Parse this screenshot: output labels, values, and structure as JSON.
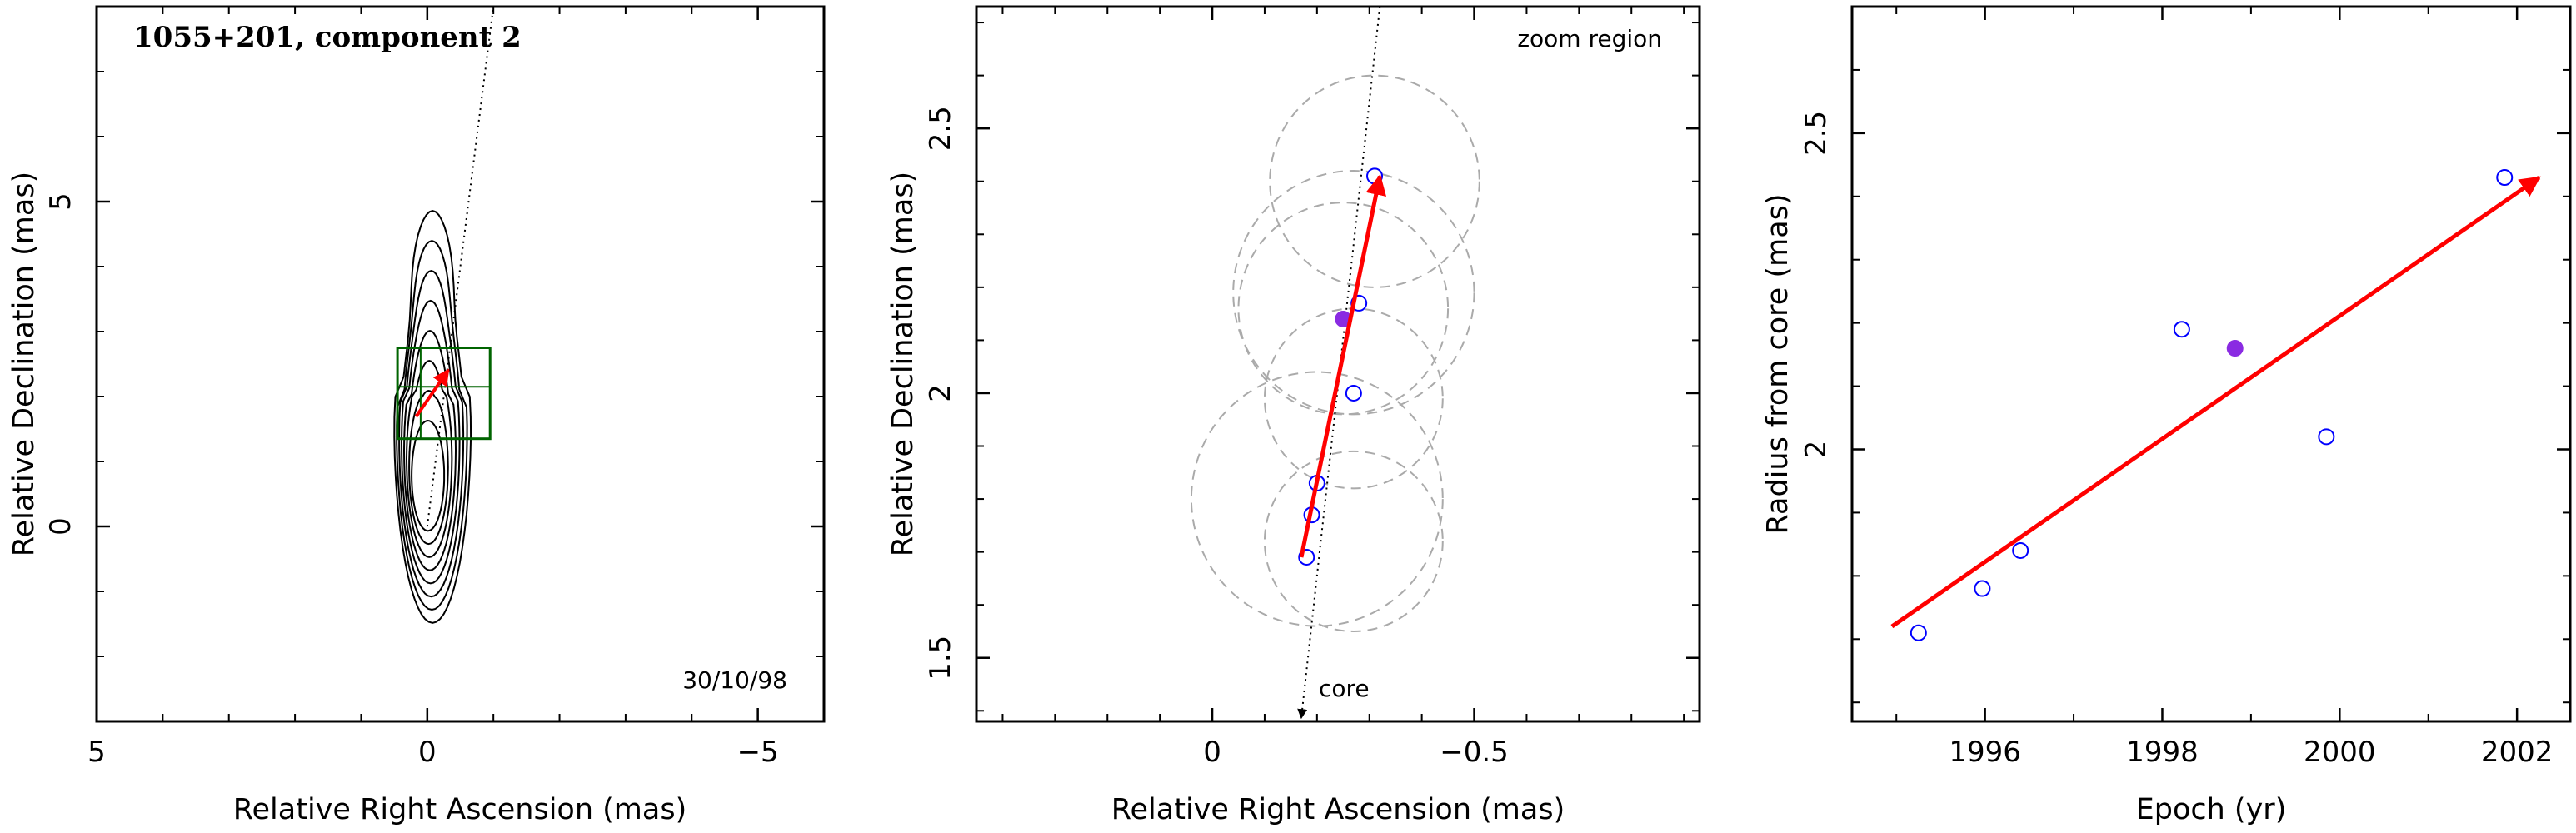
{
  "chart_data": [
    {
      "type": "contour",
      "title": "1055+201, component 2",
      "annotation": "30/10/98",
      "xlabel": "Relative Right Ascension (mas)",
      "ylabel": "Relative Declination (mas)",
      "xlim": [
        5,
        -6
      ],
      "ylim": [
        -3,
        8
      ],
      "xticks": [
        5,
        0,
        -5
      ],
      "yticks": [
        0,
        5
      ],
      "contour_center": [
        0.0,
        0.2
      ],
      "contour_levels": 8,
      "ridge_line": {
        "x": [
          0.0,
          -1.0
        ],
        "y": [
          0.0,
          8.0
        ]
      },
      "zoom_box": {
        "x": [
          0.45,
          -0.95
        ],
        "y": [
          1.35,
          2.75
        ],
        "mid_x": 0.1,
        "mid_y": 2.15
      },
      "motion_arrow": {
        "from": [
          0.17,
          1.69
        ],
        "to": [
          -0.32,
          2.41
        ]
      },
      "colors": {
        "contours": "#000000",
        "box": "#006400",
        "arrow": "#ff0000"
      }
    },
    {
      "type": "scatter",
      "annotations": [
        "zoom region",
        "core"
      ],
      "xlabel": "Relative Right Ascension (mas)",
      "ylabel": "Relative Declination (mas)",
      "xlim": [
        0.45,
        -0.93
      ],
      "ylim": [
        1.38,
        2.73
      ],
      "xticks": [
        0,
        -0.5
      ],
      "yticks": [
        1.5,
        2,
        2.5
      ],
      "points": [
        {
          "x": -0.18,
          "y": 1.69,
          "filled": false
        },
        {
          "x": -0.19,
          "y": 1.77,
          "filled": false
        },
        {
          "x": -0.2,
          "y": 1.83,
          "filled": false
        },
        {
          "x": -0.27,
          "y": 2.0,
          "filled": false
        },
        {
          "x": -0.28,
          "y": 2.17,
          "filled": false
        },
        {
          "x": -0.25,
          "y": 2.14,
          "filled": true
        },
        {
          "x": -0.31,
          "y": 2.41,
          "filled": false
        }
      ],
      "error_circles": [
        {
          "x": -0.2,
          "y": 1.8,
          "r": 0.24
        },
        {
          "x": -0.27,
          "y": 1.72,
          "r": 0.17
        },
        {
          "x": -0.25,
          "y": 2.16,
          "r": 0.2
        },
        {
          "x": -0.27,
          "y": 2.19,
          "r": 0.23
        },
        {
          "x": -0.27,
          "y": 1.99,
          "r": 0.17
        },
        {
          "x": -0.31,
          "y": 2.4,
          "r": 0.2
        }
      ],
      "ridge_line": {
        "x": [
          -0.17,
          -0.32
        ],
        "y": [
          1.38,
          2.73
        ]
      },
      "motion_arrow": {
        "from": [
          -0.17,
          1.69
        ],
        "to": [
          -0.32,
          2.41
        ]
      },
      "colors": {
        "points": "#0000ff",
        "filled": "#8a2be2",
        "circles": "#aaaaaa",
        "arrow": "#ff0000"
      }
    },
    {
      "type": "scatter",
      "xlabel": "Epoch (yr)",
      "ylabel": "Radius from core (mas)",
      "xlim": [
        1994.5,
        2002.6
      ],
      "ylim": [
        1.57,
        2.7
      ],
      "xticks": [
        1996,
        1998,
        2000,
        2002
      ],
      "yticks": [
        2,
        2.5
      ],
      "points": [
        {
          "x": 1995.25,
          "y": 1.71,
          "filled": false
        },
        {
          "x": 1995.97,
          "y": 1.78,
          "filled": false
        },
        {
          "x": 1996.4,
          "y": 1.84,
          "filled": false
        },
        {
          "x": 1998.22,
          "y": 2.19,
          "filled": false
        },
        {
          "x": 1998.82,
          "y": 2.16,
          "filled": true
        },
        {
          "x": 1999.85,
          "y": 2.02,
          "filled": false
        },
        {
          "x": 2001.86,
          "y": 2.43,
          "filled": false
        }
      ],
      "fit_arrow": {
        "from": [
          1994.95,
          1.72
        ],
        "to": [
          2002.25,
          2.43
        ]
      },
      "colors": {
        "points": "#0000ff",
        "filled": "#8a2be2",
        "arrow": "#ff0000"
      }
    }
  ]
}
